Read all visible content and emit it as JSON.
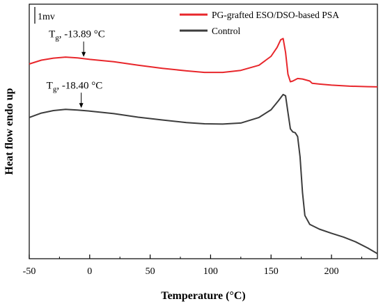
{
  "chart_data": {
    "type": "line",
    "xlabel": "Temperature (°C)",
    "ylabel": "Heat flow endo up",
    "xlim": [
      -50,
      238
    ],
    "y_units": "arbitrary",
    "ylim": [
      0,
      100
    ],
    "xticks": [
      -50,
      0,
      50,
      100,
      150,
      200
    ],
    "xtick_labels": [
      "-50",
      "0",
      "50",
      "100",
      "150",
      "200"
    ],
    "grid": false,
    "legend_position": "top-right",
    "scale_bar_label": "1mv",
    "series": [
      {
        "name": "PG-grafted ESO/DSO-based PSA",
        "color": "#e8262b",
        "points": [
          [
            -50,
            76.5
          ],
          [
            -40,
            78.0
          ],
          [
            -30,
            78.8
          ],
          [
            -20,
            79.2
          ],
          [
            -10,
            78.9
          ],
          [
            0,
            78.3
          ],
          [
            20,
            77.4
          ],
          [
            40,
            76.0
          ],
          [
            60,
            74.8
          ],
          [
            80,
            73.8
          ],
          [
            95,
            73.2
          ],
          [
            110,
            73.2
          ],
          [
            125,
            74.0
          ],
          [
            140,
            76.0
          ],
          [
            150,
            79.5
          ],
          [
            155,
            83.0
          ],
          [
            158,
            86.0
          ],
          [
            160,
            86.5
          ],
          [
            162,
            81.0
          ],
          [
            164,
            72.5
          ],
          [
            166,
            69.5
          ],
          [
            168,
            69.8
          ],
          [
            172,
            70.8
          ],
          [
            176,
            70.6
          ],
          [
            182,
            69.8
          ],
          [
            184,
            68.9
          ],
          [
            190,
            68.6
          ],
          [
            200,
            68.2
          ],
          [
            215,
            67.8
          ],
          [
            230,
            67.6
          ],
          [
            238,
            67.5
          ]
        ]
      },
      {
        "name": "Control",
        "color": "#3c3c3c",
        "points": [
          [
            -50,
            55.5
          ],
          [
            -40,
            57.2
          ],
          [
            -30,
            58.2
          ],
          [
            -20,
            58.7
          ],
          [
            -10,
            58.4
          ],
          [
            0,
            58.0
          ],
          [
            20,
            57.0
          ],
          [
            40,
            55.6
          ],
          [
            60,
            54.5
          ],
          [
            80,
            53.5
          ],
          [
            95,
            53.0
          ],
          [
            110,
            52.9
          ],
          [
            125,
            53.3
          ],
          [
            140,
            55.5
          ],
          [
            150,
            58.5
          ],
          [
            156,
            62.0
          ],
          [
            160,
            64.5
          ],
          [
            162,
            64.0
          ],
          [
            164,
            57.5
          ],
          [
            166,
            51.0
          ],
          [
            168,
            49.8
          ],
          [
            170,
            49.5
          ],
          [
            172,
            48.0
          ],
          [
            174,
            40.0
          ],
          [
            176,
            26.0
          ],
          [
            178,
            17.0
          ],
          [
            182,
            13.5
          ],
          [
            190,
            11.6
          ],
          [
            200,
            10.0
          ],
          [
            210,
            8.5
          ],
          [
            220,
            6.6
          ],
          [
            230,
            4.2
          ],
          [
            238,
            2.0
          ]
        ]
      }
    ],
    "annotations": [
      {
        "label_main": "T",
        "label_sub": "g",
        "label_rest": ", -13.89 °C",
        "x": -5,
        "y": 78.5
      },
      {
        "label_main": "T",
        "label_sub": "g",
        "label_rest": ", -18.40 °C",
        "x": -7,
        "y": 58.4
      }
    ]
  }
}
